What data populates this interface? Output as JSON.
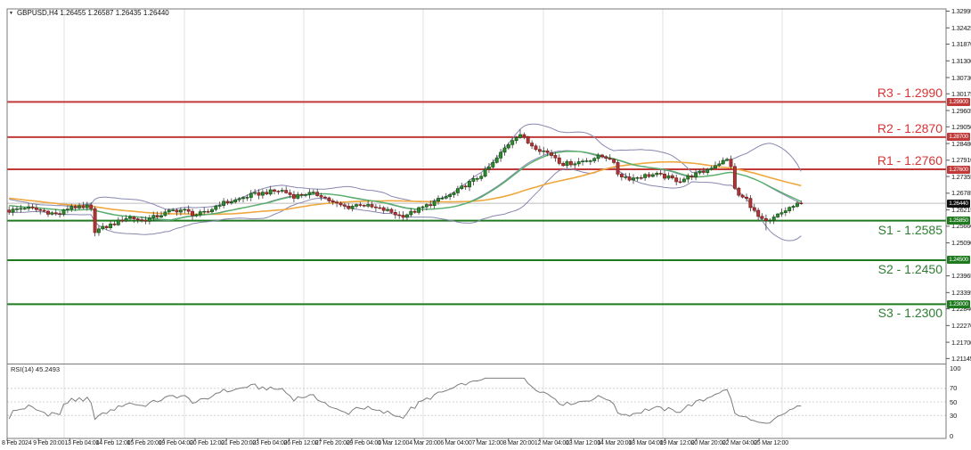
{
  "symbol_bar": {
    "dropdown_icon": "▼",
    "text": "GBPUSD,H4  1.26455 1.26587 1.26435 1.26440"
  },
  "rsi_panel": {
    "label": "RSI(14) 45.2493",
    "scale_labels": [
      "100",
      "70",
      "50",
      "30",
      "0"
    ],
    "scale_values": [
      100,
      70,
      50,
      30,
      0
    ],
    "grid_levels": [
      70,
      50,
      30
    ]
  },
  "colors": {
    "up": "#2e8b2e",
    "up_border": "#145214",
    "down": "#b03535",
    "down_border": "#7c1f1f",
    "wick": "#3a3a3a",
    "bollinger": "#8787b0",
    "ma_fast": "#57b06a",
    "ma_slow": "#efa83f",
    "resistance": "#c03a3a",
    "resistance_text": "#d93434",
    "support": "#1f7a1f",
    "support_text": "#2e7d32",
    "price_line": "#bdbdbd",
    "price_badge_bg": "#101010",
    "badge_text": "#ffffff",
    "rsi_line": "#7d7d7d",
    "rsi_grid": "#d0d0d0",
    "border": "#7a7a7a",
    "separator": "#e2e2e2",
    "bg": "#ffffff"
  },
  "chart_data": {
    "type": "candlestick",
    "symbol": "GBPUSD",
    "timeframe": "H4",
    "quote": {
      "open": "1.26455",
      "high": "1.26587",
      "low": "1.26435",
      "close": "1.26440"
    },
    "ylim": [
      1.21145,
      1.32995
    ],
    "grid": "off",
    "price_axis_ticks": [
      "1.32995",
      "1.32425",
      "1.31870",
      "1.31300",
      "1.30730",
      "1.30175",
      "1.29605",
      "1.29050",
      "1.28480",
      "1.27910",
      "1.27355",
      "1.26785",
      "1.26215",
      "1.25660",
      "1.25090",
      "1.23965",
      "1.23395",
      "1.22840",
      "1.22270",
      "1.21700",
      "1.21145"
    ],
    "x_axis_labels": [
      "8 Feb 2024",
      "9 Feb 20:00",
      "13 Feb 04:00",
      "14 Feb 12:00",
      "15 Feb 20:00",
      "19 Feb 04:00",
      "20 Feb 12:00",
      "21 Feb 20:00",
      "23 Feb 04:00",
      "26 Feb 12:00",
      "27 Feb 20:00",
      "29 Feb 04:00",
      "1 Mar 12:00",
      "4 Mar 20:00",
      "6 Mar 04:00",
      "7 Mar 12:00",
      "8 Mar 20:00",
      "12 Mar 04:00",
      "13 Mar 12:00",
      "14 Mar 20:00",
      "18 Mar 04:00",
      "19 Mar 12:00",
      "20 Mar 20:00",
      "22 Mar 04:00",
      "25 Mar 12:00"
    ],
    "sr_levels": [
      {
        "name": "R3",
        "label": "R3 - 1.2990",
        "price": 1.299,
        "badge": "1.29900",
        "type": "resistance"
      },
      {
        "name": "R2",
        "label": "R2 - 1.2870",
        "price": 1.287,
        "badge": "1.28700",
        "type": "resistance"
      },
      {
        "name": "R1",
        "label": "R1 - 1.2760",
        "price": 1.276,
        "badge": "1.27600",
        "type": "resistance"
      },
      {
        "name": "S1",
        "label": "S1 - 1.2585",
        "price": 1.2585,
        "badge": "1.25850",
        "type": "support"
      },
      {
        "name": "S2",
        "label": "S2 - 1.2450",
        "price": 1.245,
        "badge": "1.24500",
        "type": "support"
      },
      {
        "name": "S3",
        "label": "S3 - 1.2300",
        "price": 1.23,
        "badge": "1.23000",
        "type": "support"
      }
    ],
    "current_price": {
      "price": 1.2644,
      "badge": "1.26440"
    },
    "price_path_anchors": [
      [
        10,
        1.2618
      ],
      [
        28,
        1.263
      ],
      [
        48,
        1.2618
      ],
      [
        66,
        1.2605
      ],
      [
        80,
        1.2635
      ],
      [
        95,
        1.2625
      ],
      [
        101,
        1.2643
      ],
      [
        106,
        1.255
      ],
      [
        118,
        1.2562
      ],
      [
        132,
        1.258
      ],
      [
        144,
        1.2598
      ],
      [
        160,
        1.2585
      ],
      [
        176,
        1.26
      ],
      [
        192,
        1.2618
      ],
      [
        205,
        1.2622
      ],
      [
        218,
        1.2605
      ],
      [
        232,
        1.2612
      ],
      [
        246,
        1.2642
      ],
      [
        262,
        1.2652
      ],
      [
        282,
        1.2672
      ],
      [
        300,
        1.2682
      ],
      [
        316,
        1.2688
      ],
      [
        330,
        1.2668
      ],
      [
        344,
        1.2678
      ],
      [
        360,
        1.2672
      ],
      [
        374,
        1.2645
      ],
      [
        390,
        1.263
      ],
      [
        404,
        1.2642
      ],
      [
        420,
        1.2628
      ],
      [
        436,
        1.2618
      ],
      [
        450,
        1.26
      ],
      [
        462,
        1.2612
      ],
      [
        476,
        1.2632
      ],
      [
        492,
        1.2655
      ],
      [
        508,
        1.2675
      ],
      [
        522,
        1.2705
      ],
      [
        538,
        1.2735
      ],
      [
        552,
        1.2775
      ],
      [
        566,
        1.283
      ],
      [
        578,
        1.2872
      ],
      [
        584,
        1.288
      ],
      [
        592,
        1.2852
      ],
      [
        604,
        1.283
      ],
      [
        616,
        1.2815
      ],
      [
        624,
        1.28
      ],
      [
        630,
        1.2778
      ],
      [
        644,
        1.2782
      ],
      [
        660,
        1.2792
      ],
      [
        674,
        1.2805
      ],
      [
        686,
        1.2798
      ],
      [
        694,
        1.2742
      ],
      [
        708,
        1.2728
      ],
      [
        722,
        1.2738
      ],
      [
        736,
        1.2742
      ],
      [
        750,
        1.2732
      ],
      [
        762,
        1.272
      ],
      [
        776,
        1.2738
      ],
      [
        790,
        1.2752
      ],
      [
        804,
        1.2778
      ],
      [
        816,
        1.2792
      ],
      [
        820,
        1.2788
      ],
      [
        823,
        1.27
      ],
      [
        830,
        1.2668
      ],
      [
        838,
        1.2658
      ],
      [
        844,
        1.2628
      ],
      [
        851,
        1.2598
      ],
      [
        857,
        1.2582
      ],
      [
        863,
        1.2578
      ],
      [
        870,
        1.2598
      ],
      [
        878,
        1.2612
      ],
      [
        886,
        1.2628
      ],
      [
        894,
        1.2638
      ],
      [
        900,
        1.2644
      ]
    ],
    "forced_wicks": [
      [
        106,
        "low",
        1.2534
      ],
      [
        584,
        "high",
        1.2896
      ],
      [
        858,
        "low",
        1.2552
      ]
    ],
    "indicators": {
      "bollinger": {
        "period": 20,
        "deviation": 2
      },
      "ma_fast": {
        "period": 21
      },
      "ma_slow": {
        "period": 50
      },
      "rsi": {
        "period": 14,
        "value": 45.2493
      }
    }
  }
}
